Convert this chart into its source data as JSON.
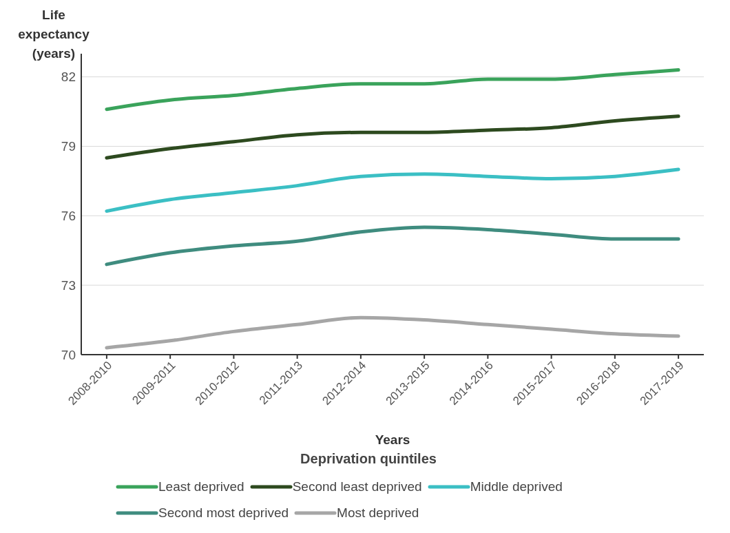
{
  "chart_data": {
    "type": "line",
    "ylabel": "Life expectancy (years)",
    "xlabel": "Years",
    "legend_title": "Deprivation quintiles",
    "categories": [
      "2008-2010",
      "2009-2011",
      "2010-2012",
      "2011-2013",
      "2012-2014",
      "2013-2015",
      "2014-2016",
      "2015-2017",
      "2016-2018",
      "2017-2019"
    ],
    "series": [
      {
        "name": "Least deprived",
        "color": "#3aa35b",
        "values": [
          80.6,
          81.0,
          81.2,
          81.5,
          81.7,
          81.7,
          81.9,
          81.9,
          82.1,
          82.3
        ]
      },
      {
        "name": "Second least deprived",
        "color": "#2d4a1f",
        "values": [
          78.5,
          78.9,
          79.2,
          79.5,
          79.6,
          79.6,
          79.7,
          79.8,
          80.1,
          80.3
        ]
      },
      {
        "name": "Middle deprived",
        "color": "#3bbfc4",
        "values": [
          76.2,
          76.7,
          77.0,
          77.3,
          77.7,
          77.8,
          77.7,
          77.6,
          77.7,
          78.0
        ]
      },
      {
        "name": "Second most deprived",
        "color": "#3f8c7f",
        "values": [
          73.9,
          74.4,
          74.7,
          74.9,
          75.3,
          75.5,
          75.4,
          75.2,
          75.0,
          75.0
        ]
      },
      {
        "name": "Most deprived",
        "color": "#a6a6a6",
        "values": [
          70.3,
          70.6,
          71.0,
          71.3,
          71.6,
          71.5,
          71.3,
          71.1,
          70.9,
          70.8
        ]
      }
    ],
    "ylim": [
      70,
      83
    ],
    "yticks": [
      70,
      73,
      76,
      79,
      82
    ],
    "grid": "y",
    "legend": "bottom",
    "marker": "none",
    "line_style": "solid"
  }
}
